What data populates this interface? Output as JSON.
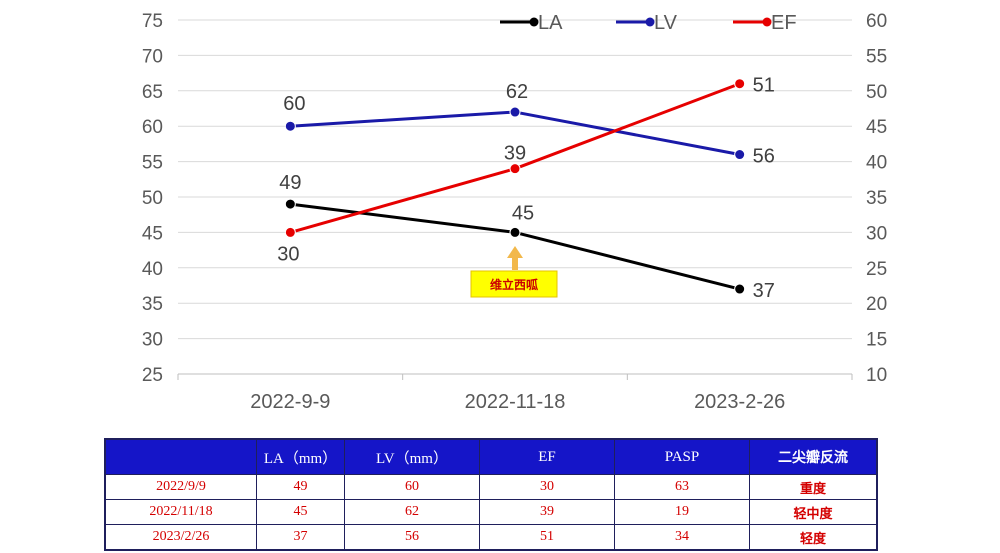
{
  "chart_data": {
    "type": "line",
    "categories": [
      "2022-9-9",
      "2022-11-18",
      "2023-2-26"
    ],
    "series": [
      {
        "name": "LA",
        "axis": "left",
        "color": "#000000",
        "values": [
          49,
          45,
          37
        ]
      },
      {
        "name": "LV",
        "axis": "left",
        "color": "#1a1aa8",
        "values": [
          60,
          62,
          56
        ]
      },
      {
        "name": "EF",
        "axis": "right",
        "color": "#e60000",
        "values": [
          30,
          39,
          51
        ]
      }
    ],
    "ylim_left": [
      25,
      75
    ],
    "yticks_left": [
      25,
      30,
      35,
      40,
      45,
      50,
      55,
      60,
      65,
      70,
      75
    ],
    "ylim_right": [
      10,
      60
    ],
    "yticks_right": [
      10,
      15,
      20,
      25,
      30,
      35,
      40,
      45,
      50,
      55,
      60
    ],
    "grid": true,
    "legend_position": "top-right",
    "annotation": {
      "text": "维立西呱",
      "category": "2022-11-18",
      "color": "#ffff00"
    }
  },
  "table": {
    "headers": [
      "",
      "LA（mm）",
      "LV（mm）",
      "EF",
      "PASP",
      "二尖瓣反流"
    ],
    "rows": [
      [
        "2022/9/9",
        "49",
        "60",
        "30",
        "63",
        "重度"
      ],
      [
        "2022/11/18",
        "45",
        "62",
        "39",
        "19",
        "轻中度"
      ],
      [
        "2023/2/26",
        "37",
        "56",
        "51",
        "34",
        "轻度"
      ]
    ]
  }
}
